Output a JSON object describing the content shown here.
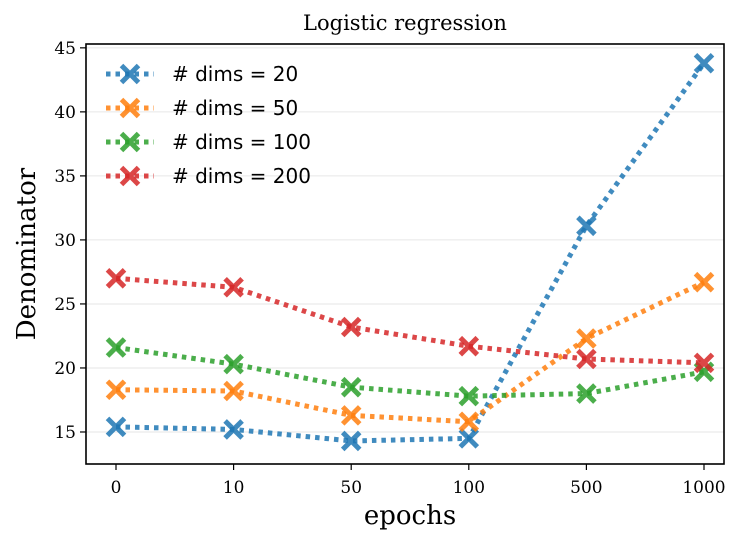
{
  "chart_data": {
    "type": "line",
    "title": "Logistic regression",
    "xlabel": "epochs",
    "ylabel": "Denominator",
    "categories": [
      "0",
      "10",
      "50",
      "100",
      "500",
      "1000"
    ],
    "ylim": [
      12.5,
      45.3
    ],
    "yticks": [
      15,
      20,
      25,
      30,
      35,
      40,
      45
    ],
    "grid": "horizontal",
    "legend_position": "top-left",
    "series": [
      {
        "name": "# dims = 20",
        "color": "#1f77b4",
        "values": [
          15.4,
          15.2,
          14.3,
          14.5,
          31.1,
          43.8
        ]
      },
      {
        "name": "# dims = 50",
        "color": "#ff7f0e",
        "values": [
          18.3,
          18.2,
          16.3,
          15.8,
          22.3,
          26.7
        ]
      },
      {
        "name": "# dims = 100",
        "color": "#2ca02c",
        "values": [
          21.6,
          20.3,
          18.5,
          17.8,
          18.0,
          19.7
        ]
      },
      {
        "name": "# dims = 200",
        "color": "#d62728",
        "values": [
          27.0,
          26.3,
          23.2,
          21.7,
          20.7,
          20.4
        ]
      }
    ]
  }
}
